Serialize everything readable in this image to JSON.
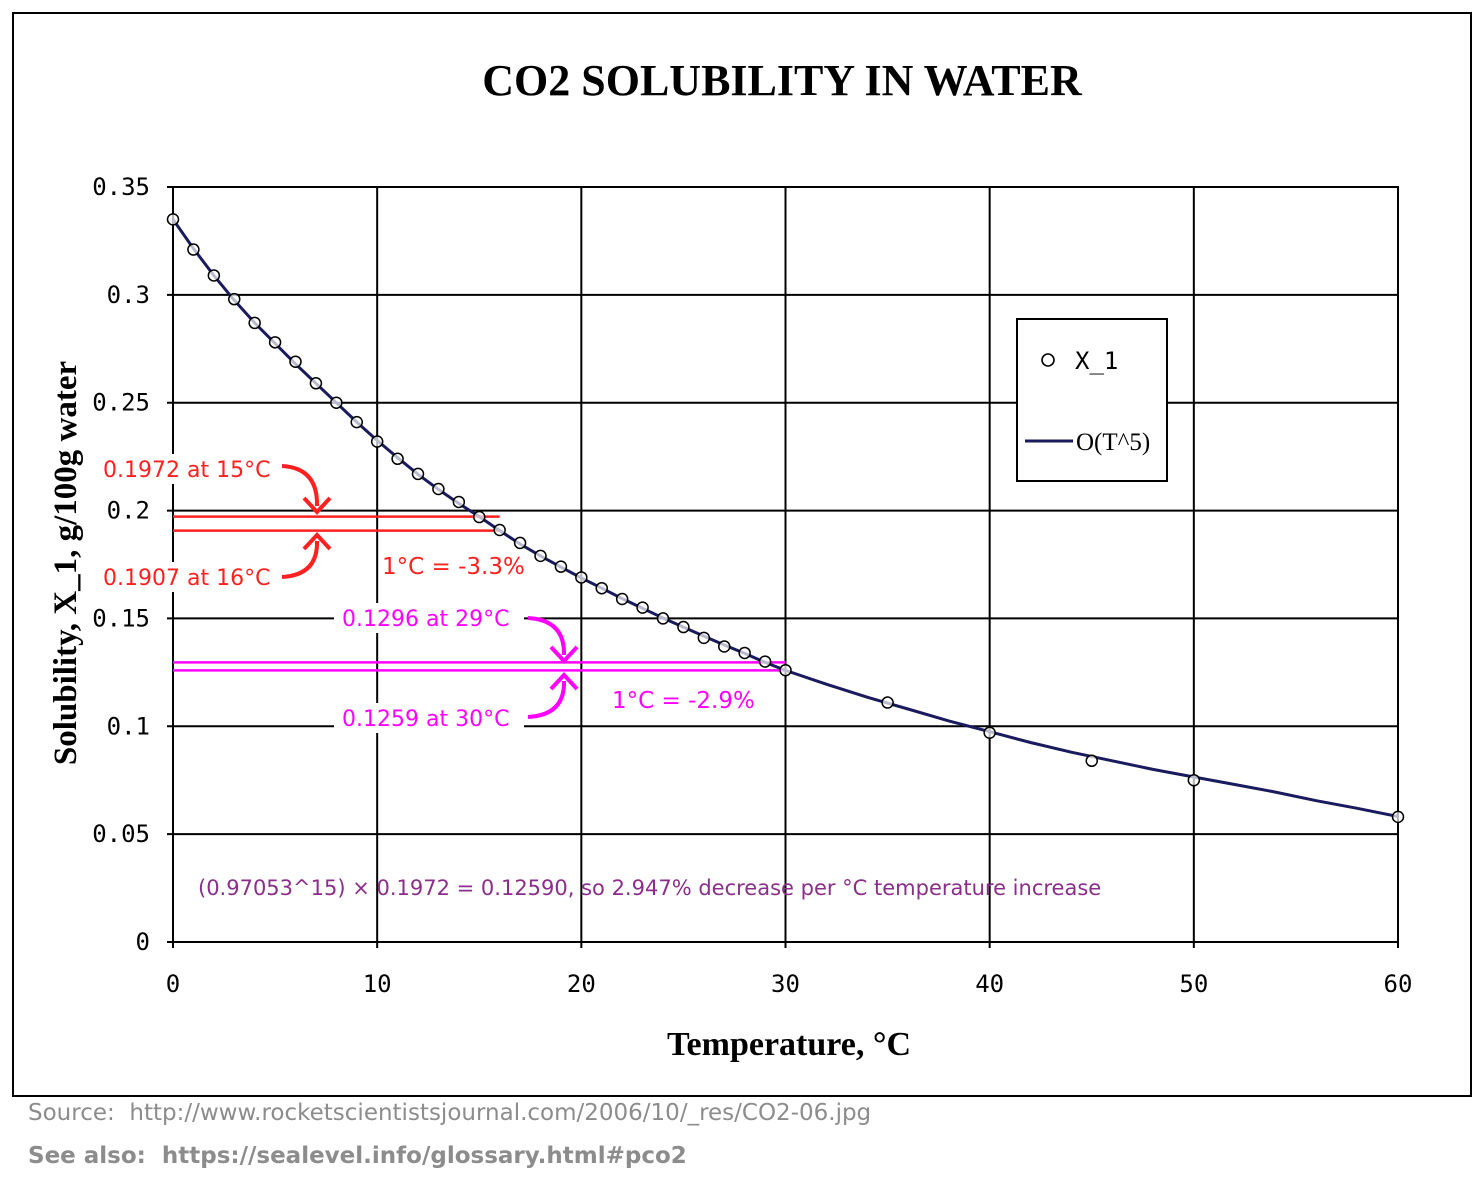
{
  "chart_data": {
    "type": "scatter",
    "title": "CO2 SOLUBILITY IN WATER",
    "xlabel": "Temperature, °C",
    "ylabel": "Solubility, X_1, g/100g water",
    "xlim": [
      0,
      60
    ],
    "ylim": [
      0,
      0.35
    ],
    "x_ticks": [
      "0",
      "10",
      "20",
      "30",
      "40",
      "50",
      "60"
    ],
    "y_ticks": [
      "0",
      "0.05",
      "0.1",
      "0.15",
      "0.2",
      "0.25",
      "0.3",
      "0.35"
    ],
    "grid": true,
    "legend_position": "right",
    "series": [
      {
        "name": "X_1",
        "marker": "open-circle",
        "x": [
          0,
          1,
          2,
          3,
          4,
          5,
          6,
          7,
          8,
          9,
          10,
          11,
          12,
          13,
          14,
          15,
          16,
          17,
          18,
          19,
          20,
          21,
          22,
          23,
          24,
          25,
          26,
          27,
          28,
          29,
          30,
          35,
          40,
          45,
          50,
          60
        ],
        "y": [
          0.335,
          0.321,
          0.309,
          0.298,
          0.287,
          0.278,
          0.269,
          0.259,
          0.25,
          0.241,
          0.232,
          0.224,
          0.217,
          0.21,
          0.204,
          0.197,
          0.191,
          0.185,
          0.179,
          0.174,
          0.169,
          0.164,
          0.159,
          0.155,
          0.15,
          0.146,
          0.141,
          0.137,
          0.134,
          0.13,
          0.126,
          0.111,
          0.097,
          0.084,
          0.075,
          0.058
        ]
      },
      {
        "name": "O(T^5)",
        "style": "line",
        "color": "#1a1a5e",
        "x": [
          0,
          1,
          2,
          3,
          4,
          5,
          6,
          7,
          8,
          9,
          10,
          11,
          12,
          13,
          14,
          15,
          16,
          17,
          18,
          19,
          20,
          21,
          22,
          23,
          24,
          25,
          26,
          27,
          28,
          29,
          30,
          32,
          34,
          36,
          38,
          40,
          42,
          44,
          46,
          48,
          50,
          52,
          54,
          56,
          58,
          60
        ],
        "y": [
          0.335,
          0.3215,
          0.309,
          0.2975,
          0.287,
          0.2775,
          0.268,
          0.259,
          0.25,
          0.241,
          0.2325,
          0.2245,
          0.2168,
          0.2098,
          0.2033,
          0.1972,
          0.1907,
          0.1845,
          0.179,
          0.1738,
          0.1688,
          0.164,
          0.1592,
          0.1547,
          0.1502,
          0.146,
          0.1418,
          0.1377,
          0.1338,
          0.1296,
          0.1259,
          0.1195,
          0.1135,
          0.108,
          0.1025,
          0.0975,
          0.0925,
          0.088,
          0.084,
          0.08,
          0.0765,
          0.073,
          0.0695,
          0.0655,
          0.062,
          0.0582
        ]
      }
    ],
    "annotations": {
      "a15": "0.1972 at 15°C",
      "a16": "0.1907 at 16°C",
      "delta1": "1°C = -3.3%",
      "a29": "0.1296 at 29°C",
      "a30": "0.1259 at 30°C",
      "delta2": "1°C = -2.9%",
      "formula": "(0.97053^15) × 0.1972 = 0.12590, so 2.947% decrease per  °C temperature increase"
    },
    "reference_lines": {
      "red": [
        0.1972,
        0.1907
      ],
      "magenta": [
        0.1296,
        0.1259
      ]
    },
    "colors": {
      "red": "#ff2020",
      "magenta": "#ff00ff",
      "formula": "#8b2e8b",
      "curve": "#1a1a5e"
    }
  },
  "footer": {
    "source": "Source:  http://www.rocketscientistsjournal.com/2006/10/_res/CO2-06.jpg",
    "see_also": "See also:  https://sealevel.info/glossary.html#pco2"
  }
}
